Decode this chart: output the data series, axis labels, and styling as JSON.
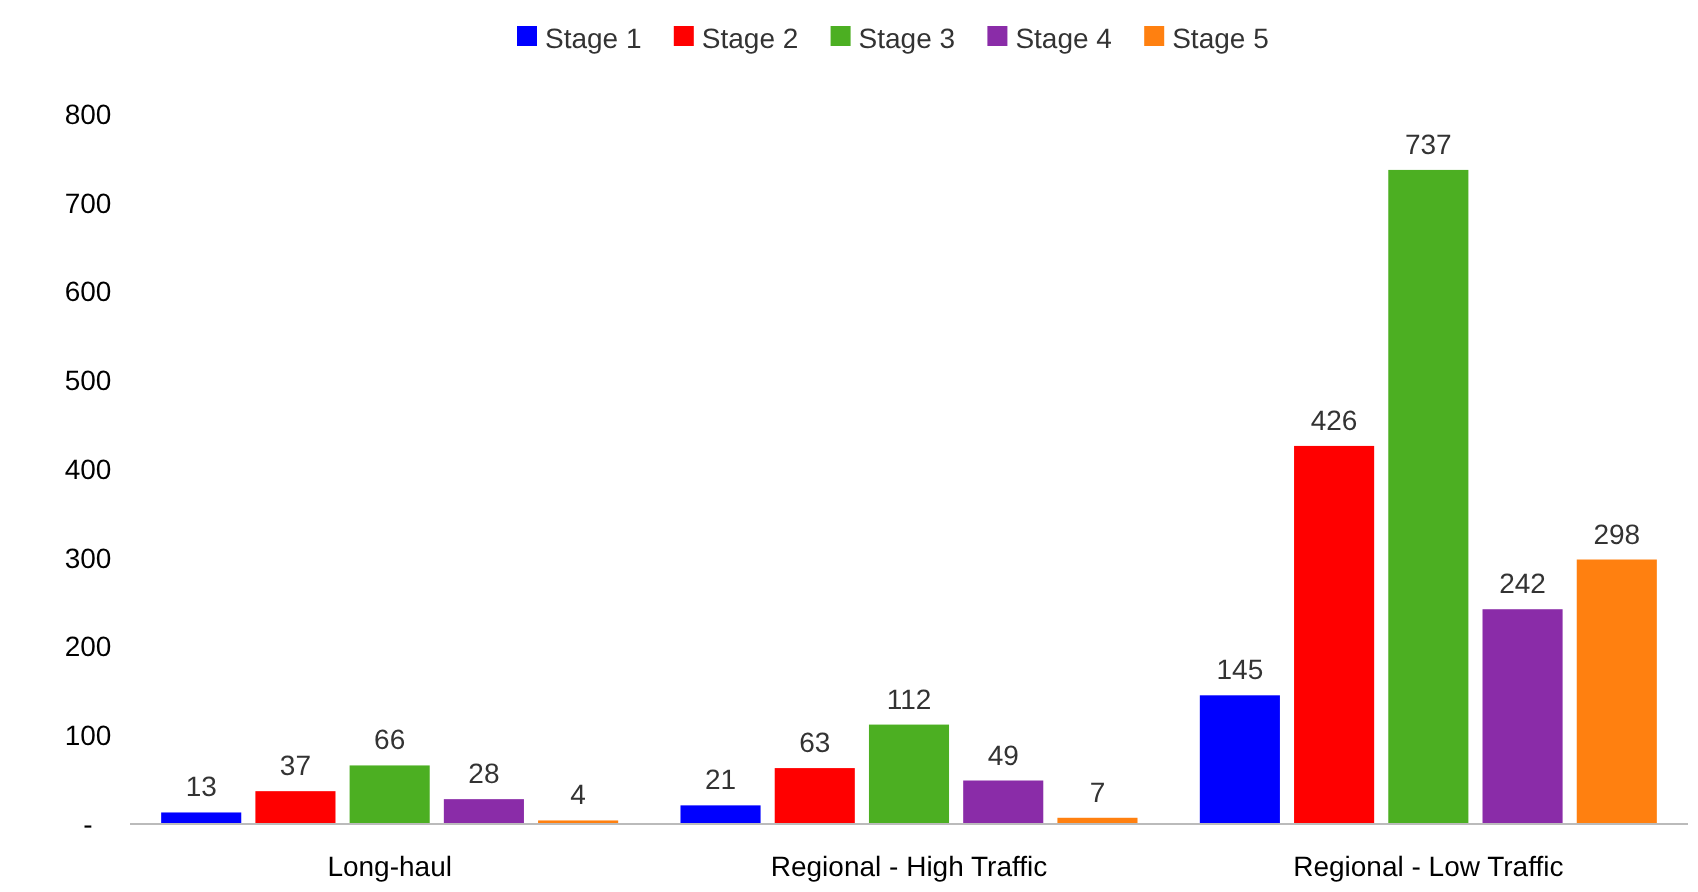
{
  "chart_data": {
    "type": "bar",
    "categories": [
      "Long-haul",
      "Regional - High Traffic",
      "Regional - Low Traffic"
    ],
    "series": [
      {
        "name": "Stage 1",
        "color": "#0000ff",
        "values": [
          13,
          21,
          145
        ]
      },
      {
        "name": "Stage 2",
        "color": "#ff0000",
        "values": [
          37,
          63,
          426
        ]
      },
      {
        "name": "Stage 3",
        "color": "#4caf22",
        "values": [
          66,
          112,
          737
        ]
      },
      {
        "name": "Stage 4",
        "color": "#8a2ca8",
        "values": [
          28,
          49,
          242
        ]
      },
      {
        "name": "Stage 5",
        "color": "#ff8010",
        "values": [
          4,
          7,
          298
        ]
      }
    ],
    "ylim": [
      0,
      800
    ],
    "yticks": [
      {
        "value": 0,
        "label": "-"
      },
      100,
      200,
      300,
      400,
      500,
      600,
      700,
      800
    ],
    "data_labels": true,
    "legend": "top",
    "grid": false
  }
}
